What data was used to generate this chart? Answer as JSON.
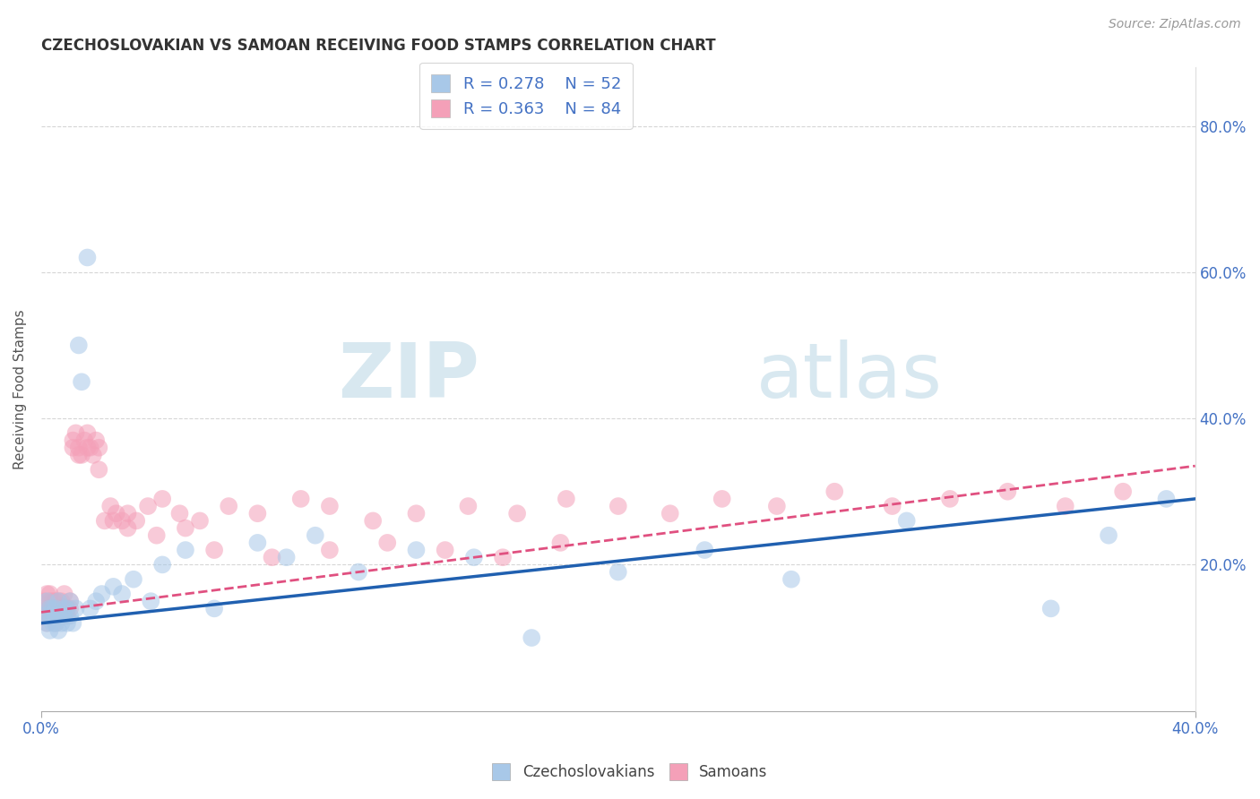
{
  "title": "CZECHOSLOVAKIAN VS SAMOAN RECEIVING FOOD STAMPS CORRELATION CHART",
  "source": "Source: ZipAtlas.com",
  "ylabel": "Receiving Food Stamps",
  "ytick_values": [
    0.2,
    0.4,
    0.6,
    0.8
  ],
  "xmin": 0.0,
  "xmax": 0.4,
  "ymin": 0.0,
  "ymax": 0.88,
  "legend_r_czech": "R = 0.278",
  "legend_n_czech": "N = 52",
  "legend_r_samoan": "R = 0.363",
  "legend_n_samoan": "N = 84",
  "czech_color": "#a8c8e8",
  "samoan_color": "#f4a0b8",
  "trendline_czech_color": "#2060b0",
  "trendline_samoan_color": "#e05080",
  "watermark_zip": "ZIP",
  "watermark_atlas": "atlas",
  "czech_x": [
    0.001,
    0.002,
    0.002,
    0.003,
    0.003,
    0.003,
    0.004,
    0.004,
    0.004,
    0.005,
    0.005,
    0.005,
    0.006,
    0.006,
    0.006,
    0.007,
    0.007,
    0.008,
    0.008,
    0.009,
    0.009,
    0.01,
    0.01,
    0.011,
    0.012,
    0.013,
    0.014,
    0.016,
    0.017,
    0.019,
    0.021,
    0.025,
    0.028,
    0.032,
    0.038,
    0.042,
    0.05,
    0.06,
    0.075,
    0.085,
    0.095,
    0.11,
    0.13,
    0.15,
    0.17,
    0.2,
    0.23,
    0.26,
    0.3,
    0.35,
    0.37,
    0.39
  ],
  "czech_y": [
    0.13,
    0.12,
    0.15,
    0.11,
    0.14,
    0.13,
    0.12,
    0.14,
    0.13,
    0.12,
    0.14,
    0.13,
    0.11,
    0.13,
    0.15,
    0.13,
    0.12,
    0.13,
    0.14,
    0.12,
    0.14,
    0.13,
    0.15,
    0.12,
    0.14,
    0.5,
    0.45,
    0.62,
    0.14,
    0.15,
    0.16,
    0.17,
    0.16,
    0.18,
    0.15,
    0.2,
    0.22,
    0.14,
    0.23,
    0.21,
    0.24,
    0.19,
    0.22,
    0.21,
    0.1,
    0.19,
    0.22,
    0.18,
    0.26,
    0.14,
    0.24,
    0.29
  ],
  "samoan_x": [
    0.001,
    0.001,
    0.002,
    0.002,
    0.002,
    0.003,
    0.003,
    0.003,
    0.003,
    0.004,
    0.004,
    0.004,
    0.004,
    0.005,
    0.005,
    0.005,
    0.005,
    0.006,
    0.006,
    0.006,
    0.007,
    0.007,
    0.007,
    0.008,
    0.008,
    0.008,
    0.009,
    0.009,
    0.01,
    0.01,
    0.011,
    0.011,
    0.012,
    0.013,
    0.014,
    0.015,
    0.016,
    0.017,
    0.018,
    0.019,
    0.02,
    0.022,
    0.024,
    0.026,
    0.028,
    0.03,
    0.033,
    0.037,
    0.042,
    0.048,
    0.055,
    0.065,
    0.075,
    0.09,
    0.1,
    0.115,
    0.13,
    0.148,
    0.165,
    0.182,
    0.2,
    0.218,
    0.236,
    0.255,
    0.275,
    0.295,
    0.315,
    0.335,
    0.355,
    0.375,
    0.013,
    0.016,
    0.02,
    0.025,
    0.03,
    0.04,
    0.05,
    0.06,
    0.08,
    0.1,
    0.12,
    0.14,
    0.16,
    0.18
  ],
  "samoan_y": [
    0.13,
    0.15,
    0.12,
    0.14,
    0.16,
    0.13,
    0.15,
    0.14,
    0.16,
    0.13,
    0.14,
    0.15,
    0.13,
    0.12,
    0.14,
    0.15,
    0.13,
    0.14,
    0.13,
    0.15,
    0.13,
    0.14,
    0.15,
    0.13,
    0.14,
    0.16,
    0.14,
    0.13,
    0.14,
    0.15,
    0.37,
    0.36,
    0.38,
    0.36,
    0.35,
    0.37,
    0.38,
    0.36,
    0.35,
    0.37,
    0.36,
    0.26,
    0.28,
    0.27,
    0.26,
    0.27,
    0.26,
    0.28,
    0.29,
    0.27,
    0.26,
    0.28,
    0.27,
    0.29,
    0.28,
    0.26,
    0.27,
    0.28,
    0.27,
    0.29,
    0.28,
    0.27,
    0.29,
    0.28,
    0.3,
    0.28,
    0.29,
    0.3,
    0.28,
    0.3,
    0.35,
    0.36,
    0.33,
    0.26,
    0.25,
    0.24,
    0.25,
    0.22,
    0.21,
    0.22,
    0.23,
    0.22,
    0.21,
    0.23
  ]
}
